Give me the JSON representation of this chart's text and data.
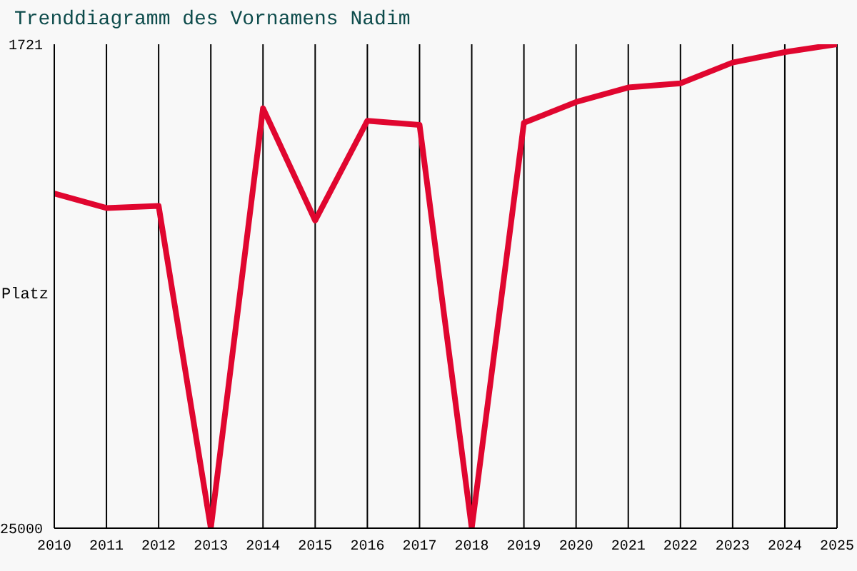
{
  "chart_data": {
    "type": "line",
    "title": "Trenddiagramm des Vornamens Nadim",
    "ylabel": "Platz",
    "x": [
      2010,
      2011,
      2012,
      2013,
      2014,
      2015,
      2016,
      2017,
      2018,
      2019,
      2020,
      2021,
      2022,
      2023,
      2024,
      2025
    ],
    "series": [
      {
        "color": "#e0062f",
        "values": [
          8900,
          9600,
          9500,
          25000,
          4800,
          10200,
          5400,
          5600,
          25000,
          5500,
          4500,
          3800,
          3600,
          2600,
          2100,
          1721
        ]
      }
    ],
    "xlim": [
      2010,
      2025
    ],
    "xticks": [
      2010,
      2011,
      2012,
      2013,
      2014,
      2015,
      2016,
      2017,
      2018,
      2019,
      2020,
      2021,
      2022,
      2023,
      2024,
      2025
    ],
    "ylim": [
      25000,
      1721
    ],
    "yticks": [
      1721,
      25000
    ],
    "grid": "x"
  }
}
